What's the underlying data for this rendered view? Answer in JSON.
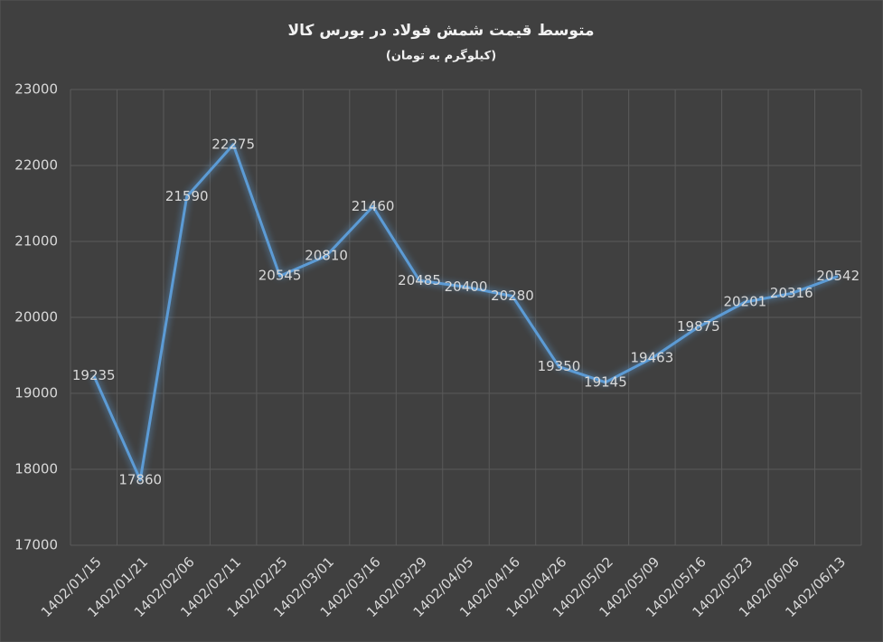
{
  "chart_data": {
    "type": "line",
    "title": "متوسط قیمت شمش فولاد در بورس کالا",
    "subtitle": "(کیلوگرم به تومان)",
    "categories": [
      "1402/01/15",
      "1402/01/21",
      "1402/02/06",
      "1402/02/11",
      "1402/02/25",
      "1402/03/01",
      "1402/03/16",
      "1402/03/29",
      "1402/04/05",
      "1402/04/16",
      "1402/04/26",
      "1402/05/02",
      "1402/05/09",
      "1402/05/16",
      "1402/05/23",
      "1402/06/06",
      "1402/06/13"
    ],
    "values": [
      19235,
      17860,
      21590,
      22275,
      20545,
      20810,
      21460,
      20485,
      20400,
      20280,
      19350,
      19145,
      19463,
      19875,
      20201,
      20316,
      20542
    ],
    "color": "#5b9bd5",
    "ylim": [
      17000,
      23000
    ],
    "yticks": [
      17000,
      18000,
      19000,
      20000,
      21000,
      22000,
      23000
    ],
    "grid": true
  }
}
